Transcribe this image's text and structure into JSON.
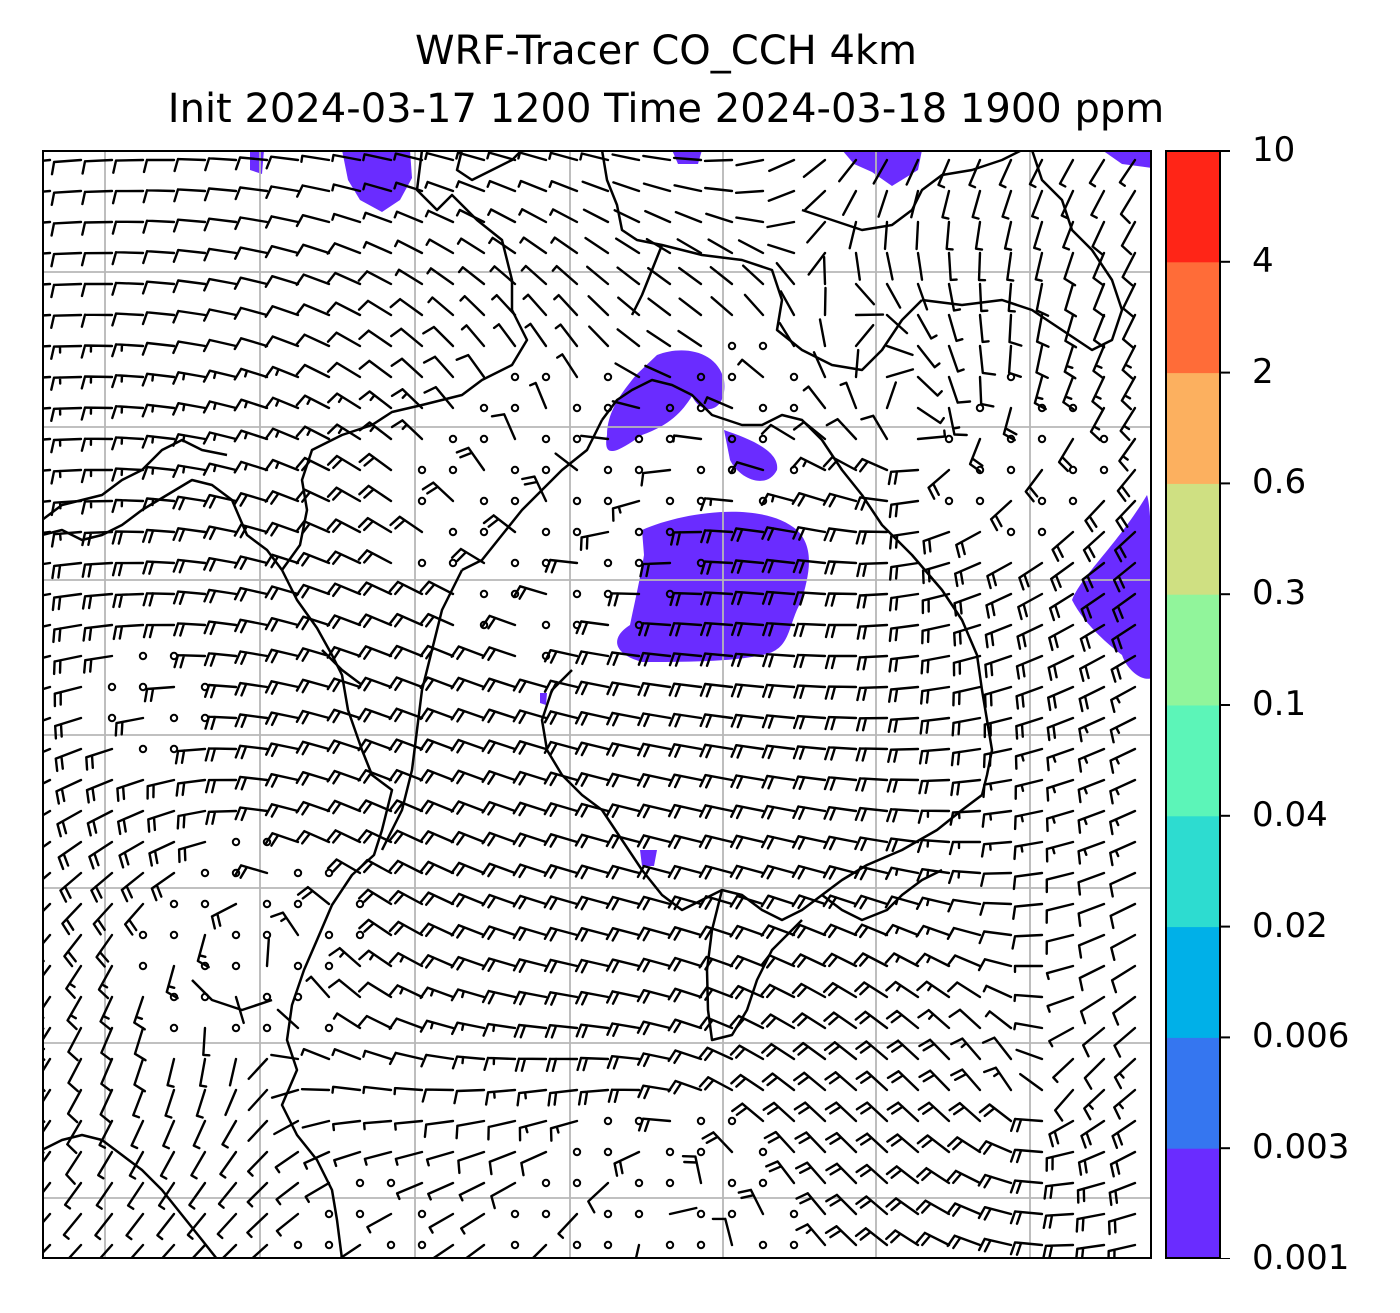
{
  "title_line1": "WRF-Tracer CO_CCH 4km",
  "title_line2": "Init 2024-03-17 1200 Time 2024-03-18 1900 ppm",
  "colorbar": {
    "levels": [
      "0.001",
      "0.003",
      "0.006",
      "0.02",
      "0.04",
      "0.1",
      "0.3",
      "0.6",
      "2",
      "4",
      "10"
    ],
    "colors": [
      "#6a2cff",
      "#3576f0",
      "#00b0e8",
      "#2ddcd0",
      "#5cf5b8",
      "#91f59b",
      "#cfe082",
      "#fcb05f",
      "#ff6c38",
      "#ff2517"
    ]
  },
  "map": {
    "field_color": "#6a2cff",
    "gridline_color": "#b7b7b7",
    "coastline_color": "#000000",
    "barb_color": "#000000"
  }
}
